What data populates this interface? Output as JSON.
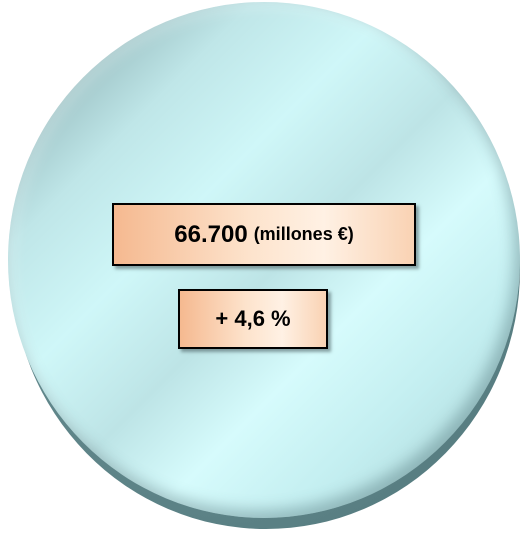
{
  "figure": {
    "amount_value": "66.700",
    "amount_unit": "(millones €)",
    "growth_value": "+ 4,6 %"
  },
  "colors": {
    "disc_light": "#cff7f8",
    "disc_dark": "#6f9599",
    "box_orange": "#f5b990",
    "box_light": "#fff1e4",
    "border": "#000000"
  }
}
